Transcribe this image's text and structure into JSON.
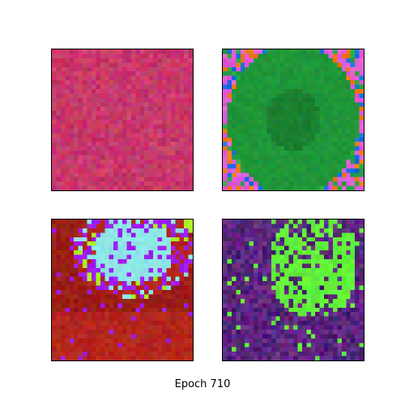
{
  "caption": {
    "text": "Epoch 710"
  },
  "panels": [
    {
      "id": "top-left",
      "description_key": "texture-a",
      "palette": {
        "base": "#c8386a",
        "accent": "#d8507e",
        "dark": "#a02e5a"
      }
    },
    {
      "id": "top-right",
      "description_key": "texture-b",
      "palette": {
        "base": "#1f9638",
        "accent": "#27a642",
        "edge1": "#e25ad8",
        "edge2": "#f27a10",
        "edge3": "#1870e0"
      }
    },
    {
      "id": "bottom-left",
      "description_key": "texture-c",
      "palette": {
        "base": "#b4261c",
        "dark": "#9a1e16",
        "cyan": "#8ee6e6",
        "purple": "#a01cf0",
        "lime": "#a8f020"
      }
    },
    {
      "id": "bottom-right",
      "description_key": "texture-d",
      "palette": {
        "base": "#6a2a8a",
        "dark": "#4a2070",
        "green": "#62f03a",
        "magenta": "#9a2a8a"
      }
    }
  ],
  "grid_resolution": 32
}
